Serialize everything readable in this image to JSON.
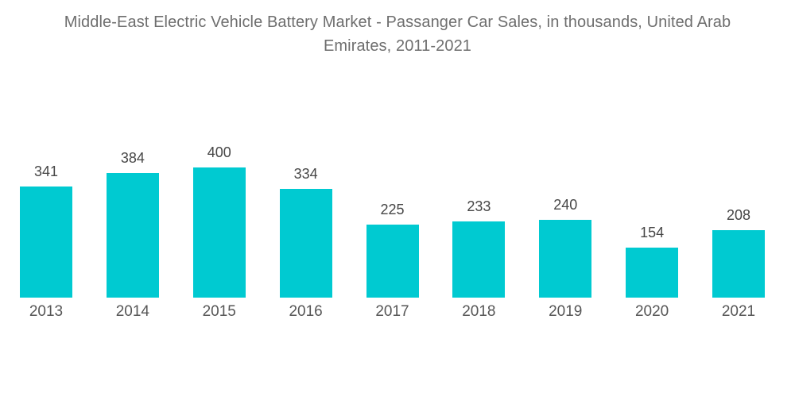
{
  "chart_data": {
    "type": "bar",
    "title": "Middle-East Electric Vehicle Battery Market - Passanger Car Sales, in thousands, United Arab Emirates, 2011-2021",
    "title_lines": [
      "Middle-East Electric Vehicle Battery Market - Passanger Car Sales, in thousands, United Arab",
      "Emirates, 2011-2021"
    ],
    "categories": [
      "2013",
      "2014",
      "2015",
      "2016",
      "2017",
      "2018",
      "2019",
      "2020",
      "2021"
    ],
    "values": [
      341,
      384,
      400,
      334,
      225,
      233,
      240,
      154,
      208
    ],
    "xlabel": "",
    "ylabel": "",
    "ylim": [
      0,
      400
    ],
    "grid": false,
    "legend": "none",
    "value_labels_shown": true,
    "colors": {
      "bar": "#00CAD1",
      "title": "#6E6E6E",
      "value_label": "#464646",
      "tick_label": "#565656",
      "background": "#FFFFFF"
    }
  }
}
